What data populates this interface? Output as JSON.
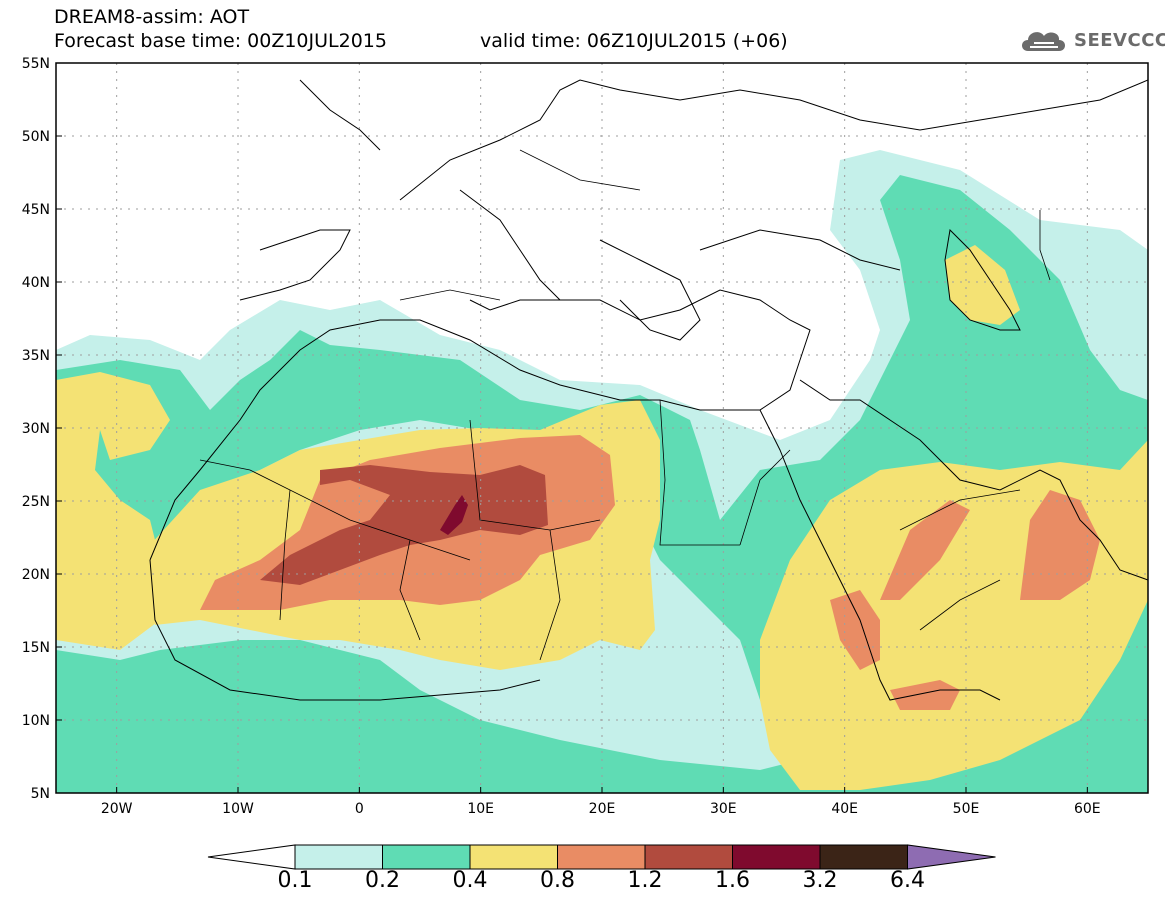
{
  "header": {
    "title": "DREAM8-assim: AOT",
    "base_time": "Forecast base time: 00Z10JUL2015",
    "valid_time": "valid time: 06Z10JUL2015 (+06)"
  },
  "logo": {
    "text": "SEEVCCC",
    "icon": "cloud-icon"
  },
  "map": {
    "lat_labels": [
      "55N",
      "50N",
      "45N",
      "40N",
      "35N",
      "30N",
      "25N",
      "20N",
      "15N",
      "10N",
      "5N"
    ],
    "lon_labels": [
      "20W",
      "10W",
      "0",
      "10E",
      "20E",
      "30E",
      "40E",
      "50E",
      "60E"
    ],
    "lat_range": [
      5,
      55
    ],
    "lon_range": [
      -25,
      65
    ],
    "grid": "dotted"
  },
  "colorbar": {
    "labels": [
      "0.1",
      "0.2",
      "0.4",
      "0.8",
      "1.2",
      "1.6",
      "3.2",
      "6.4"
    ],
    "colors": [
      "#c5f0ea",
      "#5fdcb4",
      "#f4e274",
      "#e98c64",
      "#b14b3e",
      "#7f0a2e",
      "#3b2417",
      "#8e6cb2"
    ],
    "below_color": "#ffffff"
  }
}
